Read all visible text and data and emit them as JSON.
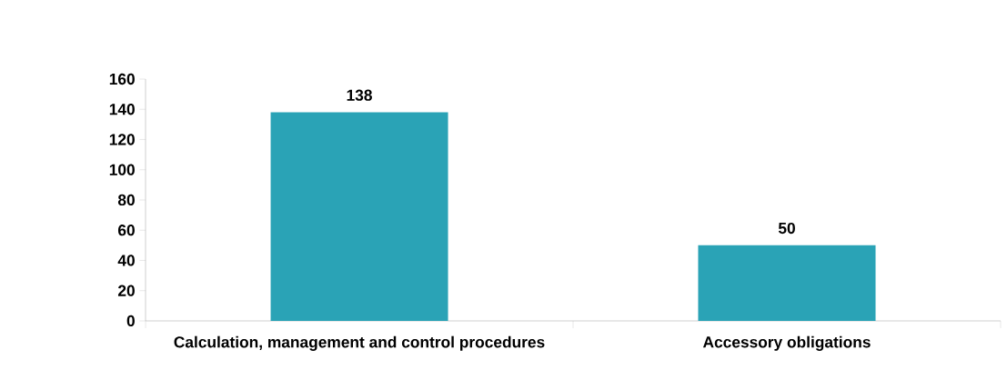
{
  "chart_data": {
    "type": "bar",
    "categories": [
      "Calculation, management and control procedures",
      "Accessory obligations"
    ],
    "values": [
      138,
      50
    ],
    "color": "#2aa3b6",
    "ylim": [
      0,
      160
    ],
    "yticks": [
      0,
      20,
      40,
      60,
      80,
      100,
      120,
      140,
      160
    ],
    "data_labels": true
  }
}
